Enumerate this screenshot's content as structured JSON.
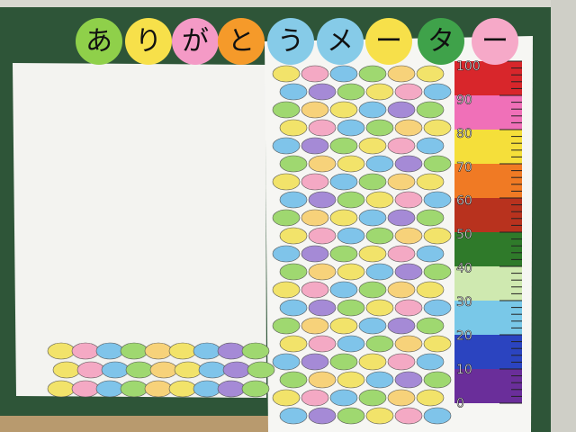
{
  "title": {
    "letters": [
      "あ",
      "り",
      "が",
      "と",
      "う",
      "メ",
      "ー",
      "タ",
      "ー"
    ]
  },
  "meter": {
    "labels": [
      "100",
      "90",
      "80",
      "70",
      "60",
      "50",
      "40",
      "30",
      "20",
      "10",
      "0"
    ]
  }
}
